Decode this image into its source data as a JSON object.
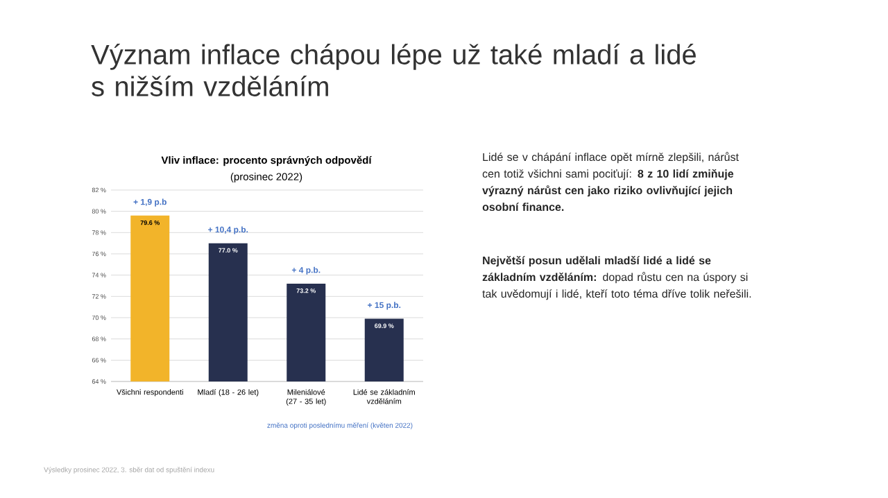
{
  "chart_data": {
    "type": "bar",
    "title": "Vliv inflace: procento správných odpovědí",
    "subtitle": "(prosinec 2022)",
    "categories": [
      "Všichni respondenti",
      "Mladí (18 - 26 let)",
      "Mileniálové (27 - 35 let)",
      "Lidé se základním vzděláním"
    ],
    "values": [
      79.6,
      77.0,
      73.2,
      69.9
    ],
    "colors": [
      "#f2b42a",
      "#27304f",
      "#27304f",
      "#27304f"
    ],
    "value_labels": [
      "79.6 %",
      "77.0 %",
      "73.2 %",
      "69.9 %"
    ],
    "ylim": [
      64,
      82
    ],
    "yticks": [
      {
        "value": 64,
        "label": "64 %"
      },
      {
        "value": 66,
        "label": "66 %"
      },
      {
        "value": 68,
        "label": "68 %"
      },
      {
        "value": 70,
        "label": "70 %"
      },
      {
        "value": 72,
        "label": "72 %"
      },
      {
        "value": 74,
        "label": "74 %"
      },
      {
        "value": 76,
        "label": "76 %"
      },
      {
        "value": 78,
        "label": "78 %"
      },
      {
        "value": 80,
        "label": "80 %"
      },
      {
        "value": 82,
        "label": "82 %"
      }
    ],
    "grid": "y",
    "annotations": [
      {
        "text": "+ 1,9 p.b",
        "x": "Všichni respondenti",
        "y": 79.6
      },
      {
        "text": "+ 10,4 p.b.",
        "x": "Mladí (18 - 26 let)",
        "y": 77.0
      },
      {
        "text": "+ 4 p.b.",
        "x": "Mileniálové (27 - 35 let)",
        "y": 73.2
      },
      {
        "text": "+ 15 p.b.",
        "x": "Lidé se základním vzděláním",
        "y": 69.9
      },
      "změna oproti poslednímu měření (květen 2022)",
      "Význam inflace chápou lépe už také mladí a lidé s nižším vzděláním",
      "Lidé se v chápání inflace opět mírně zlepšili, nárůst cen totiž všichni sami pociťují: **8 z 10 lidí zmiňuje výrazný nárůst cen jako riziko ovlivňující jejich osobní finance.**",
      "**Největší posun udělali mladší lidé a lidé se základním vzděláním:** dopad růstu cen na úspory si tak uvědomují i lidé, kteří toto téma dříve tolik neřešili.",
      "Výsledky prosinec 2022, 3. sběr dat od spuštění indexu"
    ]
  }
}
